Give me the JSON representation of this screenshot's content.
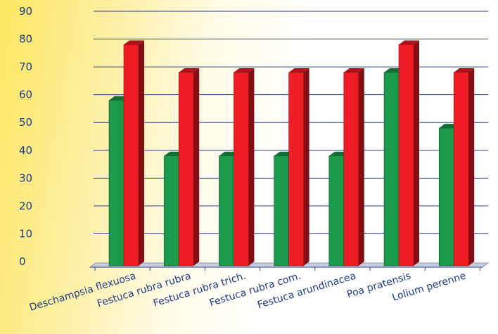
{
  "chart_data": {
    "type": "bar",
    "title": "",
    "xlabel": "",
    "ylabel": "",
    "categories": [
      "Deschampsia flexuosa",
      "Festuca rubra rubra",
      "Festuca rubra trich.",
      "Festuca rubra com.",
      "Festuca arundinacea",
      "Poa pratensis",
      "Lolium perenne"
    ],
    "series": [
      {
        "values": [
          58,
          38,
          38,
          38,
          38,
          68,
          48
        ],
        "color": "#1a9a4a"
      },
      {
        "values": [
          78,
          68,
          68,
          68,
          68,
          78,
          68
        ],
        "color": "#ee1c24"
      }
    ],
    "ylim": [
      0,
      90
    ],
    "yticks": [
      0,
      10,
      20,
      30,
      40,
      50,
      60,
      70,
      80,
      90
    ],
    "grid": true,
    "style": "3d"
  }
}
